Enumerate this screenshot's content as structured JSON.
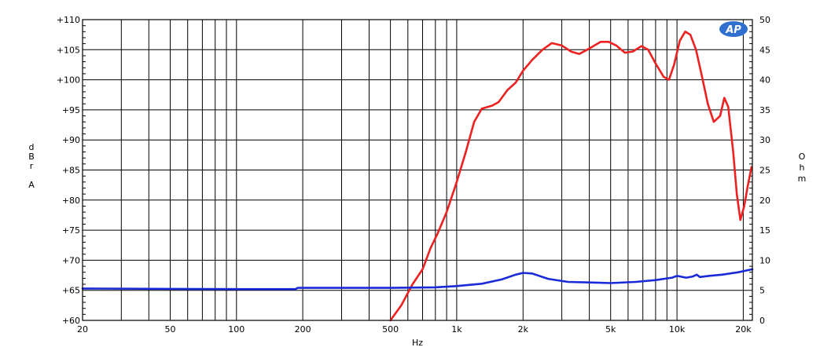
{
  "chart_data": {
    "type": "line",
    "xlabel": "Hz",
    "ylabel_left": [
      "d",
      "B",
      "r",
      "",
      "A"
    ],
    "ylabel_right": [
      "O",
      "h",
      "m"
    ],
    "x_scale": "log",
    "xlim": [
      20,
      22000
    ],
    "ylim_left": [
      60,
      110
    ],
    "ylim_right": [
      0,
      50
    ],
    "grid": true,
    "x_ticks": [
      {
        "value": 20,
        "label": "20"
      },
      {
        "value": 50,
        "label": "50"
      },
      {
        "value": 100,
        "label": "100"
      },
      {
        "value": 200,
        "label": "200"
      },
      {
        "value": 500,
        "label": "500"
      },
      {
        "value": 1000,
        "label": "1k"
      },
      {
        "value": 2000,
        "label": "2k"
      },
      {
        "value": 5000,
        "label": "5k"
      },
      {
        "value": 10000,
        "label": "10k"
      },
      {
        "value": 20000,
        "label": "20k"
      }
    ],
    "y_ticks_left": [
      {
        "value": 110,
        "label": "+110"
      },
      {
        "value": 105,
        "label": "+105"
      },
      {
        "value": 100,
        "label": "+100"
      },
      {
        "value": 95,
        "label": "+95"
      },
      {
        "value": 90,
        "label": "+90"
      },
      {
        "value": 85,
        "label": "+85"
      },
      {
        "value": 80,
        "label": "+80"
      },
      {
        "value": 75,
        "label": "+75"
      },
      {
        "value": 70,
        "label": "+70"
      },
      {
        "value": 65,
        "label": "+65"
      },
      {
        "value": 60,
        "label": "+60"
      }
    ],
    "y_ticks_right": [
      {
        "value": 50,
        "label": "50"
      },
      {
        "value": 45,
        "label": "45"
      },
      {
        "value": 40,
        "label": "40"
      },
      {
        "value": 35,
        "label": "35"
      },
      {
        "value": 30,
        "label": "30"
      },
      {
        "value": 25,
        "label": "25"
      },
      {
        "value": 20,
        "label": "20"
      },
      {
        "value": 15,
        "label": "15"
      },
      {
        "value": 10,
        "label": "10"
      },
      {
        "value": 5,
        "label": "5"
      },
      {
        "value": 0,
        "label": "0"
      }
    ],
    "series": [
      {
        "axis": "left",
        "color": "#ee2020",
        "points": [
          [
            500,
            60
          ],
          [
            560,
            62.5
          ],
          [
            630,
            66
          ],
          [
            700,
            68.5
          ],
          [
            760,
            72
          ],
          [
            820,
            74.5
          ],
          [
            900,
            78
          ],
          [
            1000,
            83
          ],
          [
            1100,
            88
          ],
          [
            1200,
            93
          ],
          [
            1300,
            95.2
          ],
          [
            1450,
            95.7
          ],
          [
            1550,
            96.3
          ],
          [
            1700,
            98.3
          ],
          [
            1850,
            99.5
          ],
          [
            2000,
            101.5
          ],
          [
            2200,
            103.3
          ],
          [
            2450,
            105
          ],
          [
            2700,
            106.1
          ],
          [
            3000,
            105.7
          ],
          [
            3300,
            104.7
          ],
          [
            3600,
            104.3
          ],
          [
            4000,
            105.2
          ],
          [
            4500,
            106.3
          ],
          [
            4900,
            106.3
          ],
          [
            5300,
            105.7
          ],
          [
            5800,
            104.5
          ],
          [
            6300,
            104.7
          ],
          [
            6900,
            105.6
          ],
          [
            7400,
            105
          ],
          [
            8000,
            102.7
          ],
          [
            8700,
            100.5
          ],
          [
            9200,
            100
          ],
          [
            9700,
            102.5
          ],
          [
            10300,
            106.5
          ],
          [
            10900,
            108
          ],
          [
            11500,
            107.5
          ],
          [
            12200,
            105
          ],
          [
            13000,
            100.5
          ],
          [
            13800,
            96
          ],
          [
            14700,
            93
          ],
          [
            15700,
            94
          ],
          [
            16400,
            97
          ],
          [
            17100,
            95.5
          ],
          [
            18000,
            88
          ],
          [
            18700,
            81
          ],
          [
            19400,
            76.7
          ],
          [
            20200,
            79
          ],
          [
            21000,
            82.5
          ],
          [
            21800,
            85.5
          ]
        ]
      },
      {
        "axis": "right",
        "color": "#1a2ad8",
        "points": [
          [
            20,
            5.3
          ],
          [
            100,
            5.2
          ],
          [
            185,
            5.2
          ],
          [
            190,
            5.4
          ],
          [
            500,
            5.4
          ],
          [
            800,
            5.5
          ],
          [
            1000,
            5.7
          ],
          [
            1300,
            6.1
          ],
          [
            1600,
            6.8
          ],
          [
            1850,
            7.6
          ],
          [
            2000,
            7.9
          ],
          [
            2200,
            7.8
          ],
          [
            2600,
            6.9
          ],
          [
            3200,
            6.4
          ],
          [
            4000,
            6.3
          ],
          [
            5000,
            6.2
          ],
          [
            6500,
            6.4
          ],
          [
            8000,
            6.7
          ],
          [
            9500,
            7.1
          ],
          [
            10000,
            7.4
          ],
          [
            11000,
            7.1
          ],
          [
            11800,
            7.3
          ],
          [
            12300,
            7.6
          ],
          [
            12700,
            7.2
          ],
          [
            14000,
            7.4
          ],
          [
            16000,
            7.6
          ],
          [
            19000,
            8.0
          ],
          [
            22000,
            8.5
          ]
        ]
      }
    ]
  },
  "logo": {
    "text": "AP",
    "color": "#2e6fd0"
  }
}
